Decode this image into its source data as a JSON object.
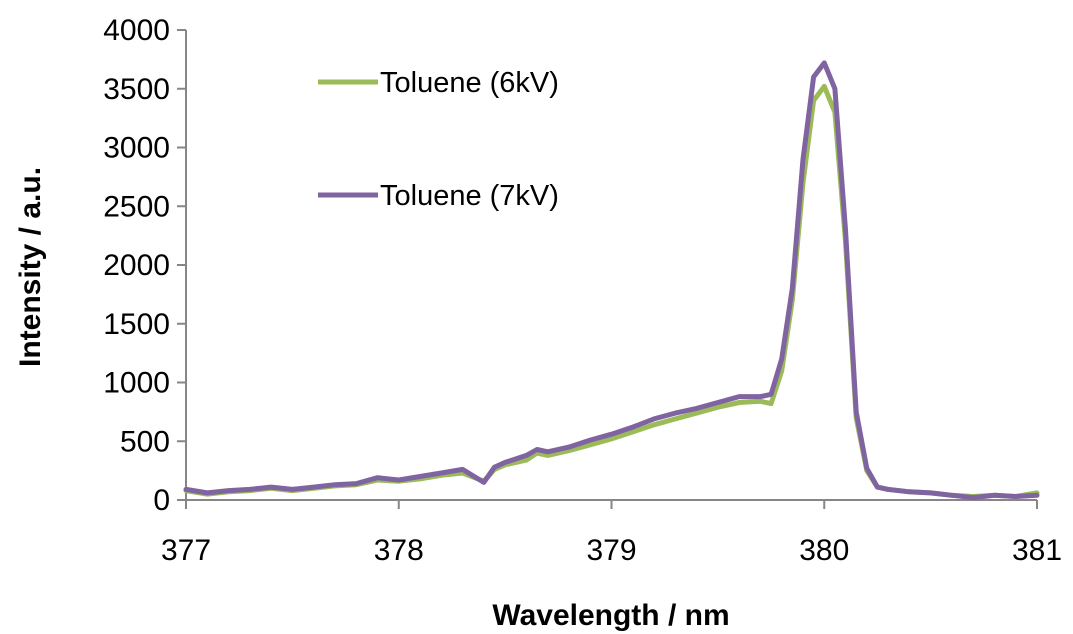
{
  "chart_data": {
    "type": "line",
    "title": "",
    "xlabel": "Wavelength / nm",
    "ylabel": "Intensity / a.u.",
    "xlim": [
      377,
      381
    ],
    "ylim": [
      0,
      4000
    ],
    "xticks": [
      "377",
      "378",
      "379",
      "380",
      "381"
    ],
    "yticks": [
      "0",
      "500",
      "1000",
      "1500",
      "2000",
      "2500",
      "3000",
      "3500",
      "4000"
    ],
    "grid": false,
    "legend_position": "top-center",
    "series": [
      {
        "name": "Toluene (6kV)",
        "color": "#9bbb59",
        "x": [
          377.0,
          377.1,
          377.2,
          377.3,
          377.4,
          377.5,
          377.6,
          377.7,
          377.8,
          377.9,
          378.0,
          378.1,
          378.2,
          378.3,
          378.4,
          378.45,
          378.5,
          378.6,
          378.65,
          378.7,
          378.8,
          378.9,
          379.0,
          379.1,
          379.2,
          379.3,
          379.4,
          379.5,
          379.6,
          379.7,
          379.75,
          379.8,
          379.85,
          379.9,
          379.95,
          380.0,
          380.05,
          380.1,
          380.15,
          380.2,
          380.25,
          380.3,
          380.4,
          380.5,
          380.6,
          380.7,
          380.8,
          380.9,
          381.0
        ],
        "values": [
          80,
          50,
          70,
          80,
          100,
          80,
          100,
          120,
          130,
          170,
          160,
          180,
          210,
          230,
          160,
          260,
          300,
          340,
          400,
          380,
          420,
          470,
          520,
          580,
          640,
          690,
          740,
          790,
          830,
          840,
          820,
          1100,
          1700,
          2700,
          3400,
          3520,
          3300,
          2200,
          700,
          250,
          110,
          90,
          70,
          60,
          40,
          30,
          40,
          30,
          60
        ]
      },
      {
        "name": "Toluene (7kV)",
        "color": "#8064a2",
        "x": [
          377.0,
          377.1,
          377.2,
          377.3,
          377.4,
          377.5,
          377.6,
          377.7,
          377.8,
          377.9,
          378.0,
          378.1,
          378.2,
          378.3,
          378.4,
          378.45,
          378.5,
          378.6,
          378.65,
          378.7,
          378.8,
          378.9,
          379.0,
          379.1,
          379.2,
          379.3,
          379.4,
          379.5,
          379.6,
          379.7,
          379.75,
          379.8,
          379.85,
          379.9,
          379.95,
          380.0,
          380.05,
          380.1,
          380.15,
          380.2,
          380.25,
          380.3,
          380.4,
          380.5,
          380.6,
          380.7,
          380.8,
          380.9,
          381.0
        ],
        "values": [
          90,
          60,
          80,
          90,
          110,
          90,
          110,
          130,
          140,
          190,
          170,
          200,
          230,
          260,
          150,
          280,
          320,
          380,
          430,
          410,
          450,
          510,
          560,
          620,
          690,
          740,
          780,
          830,
          880,
          880,
          900,
          1200,
          1800,
          2900,
          3600,
          3720,
          3500,
          2300,
          750,
          270,
          110,
          90,
          70,
          60,
          40,
          20,
          40,
          30,
          40
        ]
      }
    ]
  }
}
